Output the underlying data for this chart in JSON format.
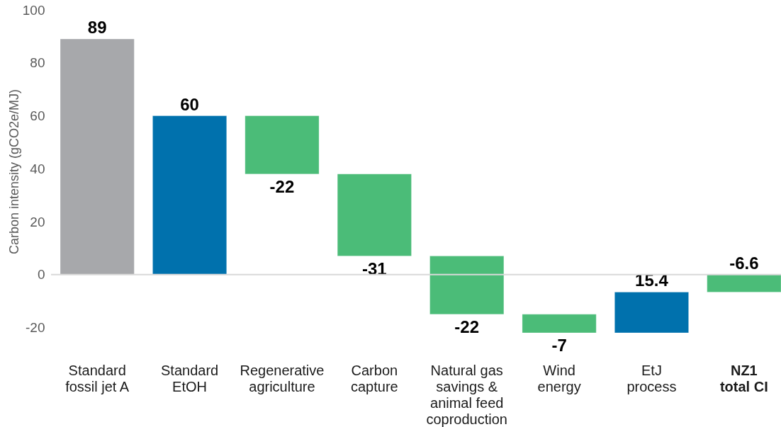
{
  "chart_data": {
    "type": "bar",
    "ylabel": "Carbon intensity (gCO2e/MJ)",
    "categories": [
      "Standard\nfossil jet A",
      "Standard\nEtOH",
      "Regenerative\nagriculture",
      "Carbon\ncapture",
      "Natural gas\nsavings &\nanimal feed\ncoproduction",
      "Wind\nenergy",
      "EtJ\nprocess",
      "NZ1\ntotal CI"
    ],
    "values": [
      89,
      60,
      -22,
      -31,
      -22,
      -7,
      15.4,
      -6.6
    ],
    "base": [
      0,
      0,
      60,
      38,
      7,
      -15,
      -22,
      0
    ],
    "colors": [
      "#a7a8ab",
      "#0071ad",
      "#4bbc78",
      "#4bbc78",
      "#4bbc78",
      "#4bbc78",
      "#0071ad",
      "#4bbc78"
    ],
    "ylim": [
      -22,
      100
    ],
    "yticks": [
      -20,
      0,
      20,
      40,
      60,
      80,
      100
    ],
    "data_labels": true,
    "ref_lines": [
      {
        "axis": "y",
        "value": 0,
        "color": "#d9d9d9"
      }
    ]
  }
}
